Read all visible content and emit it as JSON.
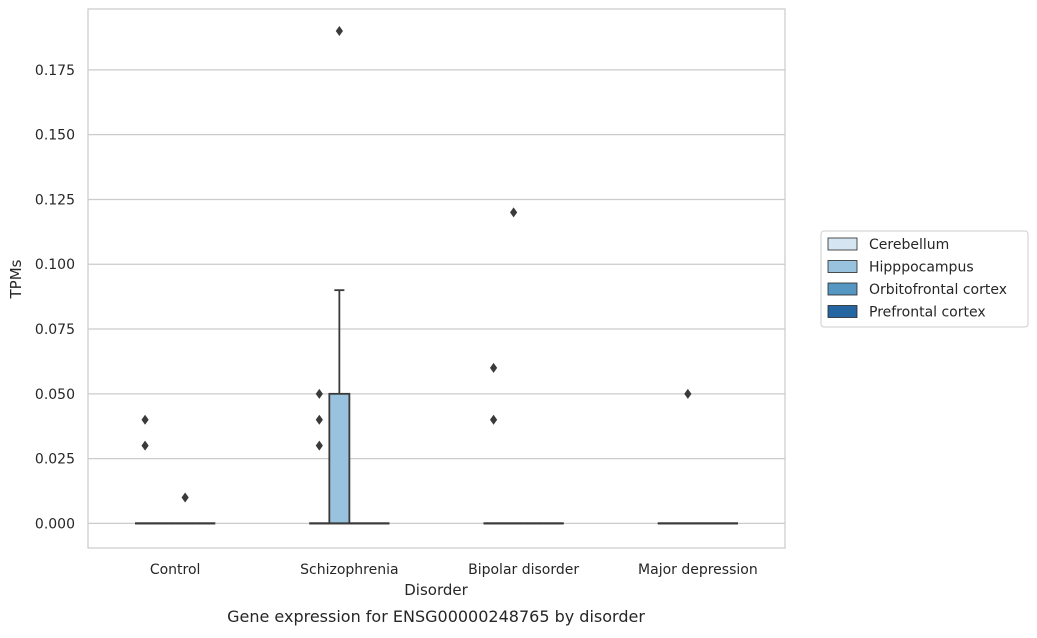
{
  "colors": {
    "Cerebellum": "#d6e5f2",
    "Hipppocampus": "#98c2dd",
    "Orbitofrontal cortex": "#5596c3",
    "Prefrontal cortex": "#2565a2",
    "grid": "#cccccc",
    "axes_frame": "#cccccc",
    "box_line": "#3a3a3a"
  },
  "chart_data": {
    "type": "box",
    "title": "",
    "caption": "Gene expression for ENSG00000248765 by disorder",
    "xlabel": "Disorder",
    "ylabel": "TPMs",
    "categories": [
      "Control",
      "Schizophrenia",
      "Bipolar disorder",
      "Major depression"
    ],
    "ylim": [
      -0.0095,
      0.1985
    ],
    "yticks": [
      0.0,
      0.025,
      0.05,
      0.075,
      0.1,
      0.125,
      0.15,
      0.175
    ],
    "ytick_labels": [
      "0.000",
      "0.025",
      "0.050",
      "0.075",
      "0.100",
      "0.125",
      "0.150",
      "0.175"
    ],
    "grid": true,
    "legend_position": "right",
    "series": [
      {
        "name": "Cerebellum",
        "boxes": [
          {
            "q1": 0,
            "median": 0,
            "q3": 0,
            "whisker_low": 0,
            "whisker_high": 0,
            "outliers": [
              0.03,
              0.04
            ]
          },
          {
            "q1": 0,
            "median": 0,
            "q3": 0,
            "whisker_low": 0,
            "whisker_high": 0,
            "outliers": [
              0.03,
              0.04,
              0.05
            ]
          },
          {
            "q1": 0,
            "median": 0,
            "q3": 0,
            "whisker_low": 0,
            "whisker_high": 0,
            "outliers": [
              0.04,
              0.06
            ]
          },
          {
            "q1": 0,
            "median": 0,
            "q3": 0,
            "whisker_low": 0,
            "whisker_high": 0,
            "outliers": []
          }
        ]
      },
      {
        "name": "Hipppocampus",
        "boxes": [
          {
            "q1": 0,
            "median": 0,
            "q3": 0,
            "whisker_low": 0,
            "whisker_high": 0,
            "outliers": []
          },
          {
            "q1": 0,
            "median": 0,
            "q3": 0.05,
            "whisker_low": 0,
            "whisker_high": 0.09,
            "outliers": [
              0.19
            ]
          },
          {
            "q1": 0,
            "median": 0,
            "q3": 0,
            "whisker_low": 0,
            "whisker_high": 0,
            "outliers": [
              0.12
            ]
          },
          {
            "q1": 0,
            "median": 0,
            "q3": 0,
            "whisker_low": 0,
            "whisker_high": 0,
            "outliers": [
              0.05
            ]
          }
        ]
      },
      {
        "name": "Orbitofrontal cortex",
        "boxes": [
          {
            "q1": 0,
            "median": 0,
            "q3": 0,
            "whisker_low": 0,
            "whisker_high": 0,
            "outliers": [
              0.01
            ]
          },
          {
            "q1": 0,
            "median": 0,
            "q3": 0,
            "whisker_low": 0,
            "whisker_high": 0,
            "outliers": []
          },
          {
            "q1": 0,
            "median": 0,
            "q3": 0,
            "whisker_low": 0,
            "whisker_high": 0,
            "outliers": []
          },
          {
            "q1": 0,
            "median": 0,
            "q3": 0,
            "whisker_low": 0,
            "whisker_high": 0,
            "outliers": []
          }
        ]
      },
      {
        "name": "Prefrontal cortex",
        "boxes": [
          {
            "q1": 0,
            "median": 0,
            "q3": 0,
            "whisker_low": 0,
            "whisker_high": 0,
            "outliers": []
          },
          {
            "q1": 0,
            "median": 0,
            "q3": 0,
            "whisker_low": 0,
            "whisker_high": 0,
            "outliers": []
          },
          {
            "q1": 0,
            "median": 0,
            "q3": 0,
            "whisker_low": 0,
            "whisker_high": 0,
            "outliers": []
          },
          {
            "q1": 0,
            "median": 0,
            "q3": 0,
            "whisker_low": 0,
            "whisker_high": 0,
            "outliers": []
          }
        ]
      }
    ]
  }
}
